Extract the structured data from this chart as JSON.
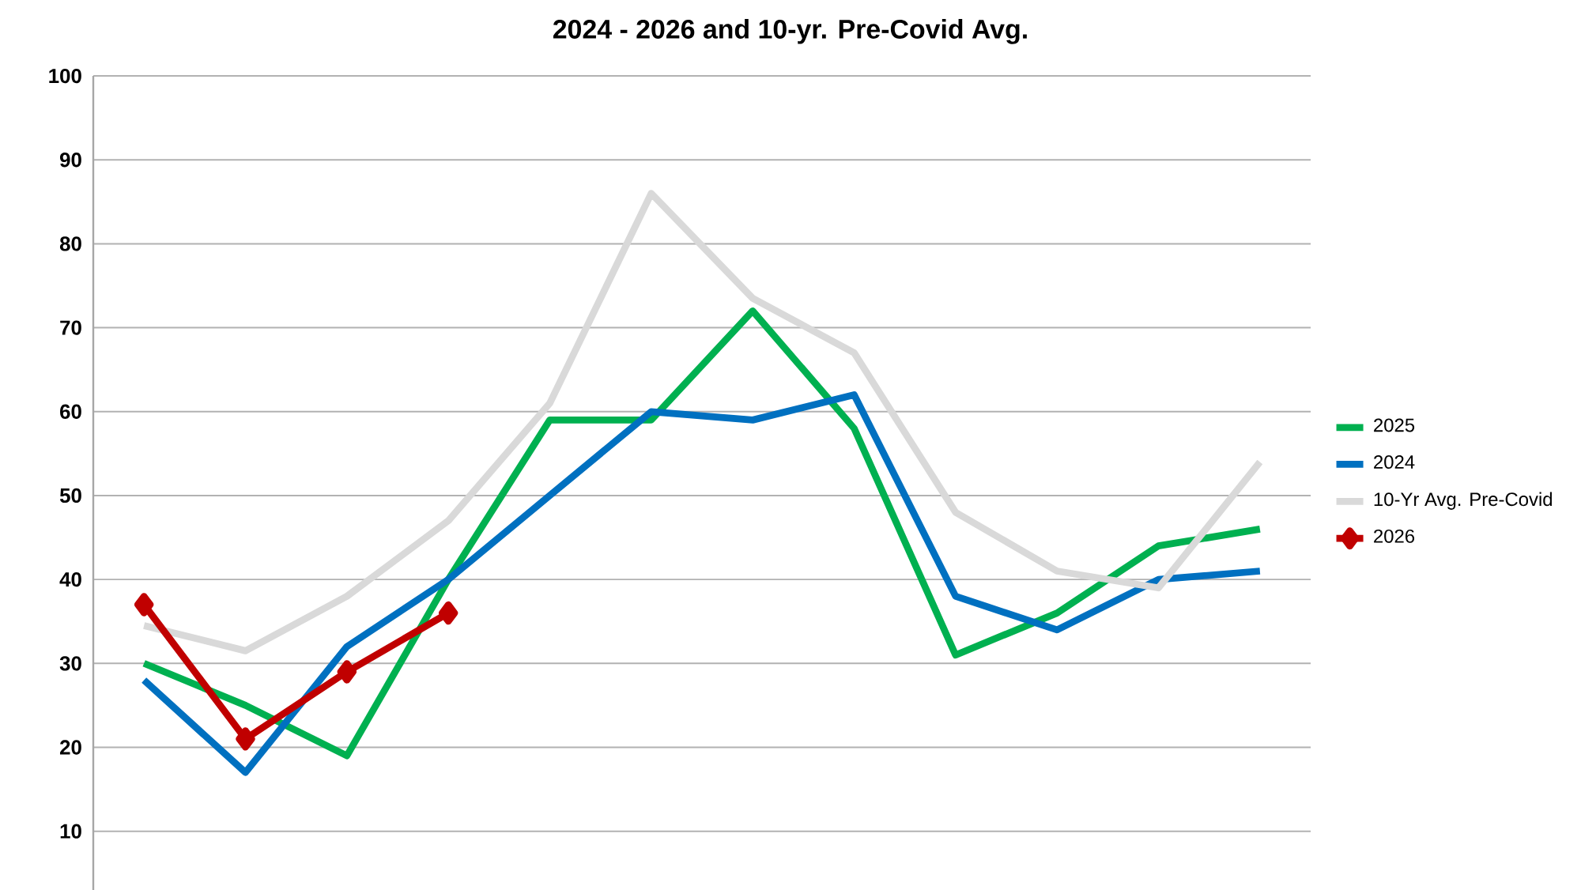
{
  "chart_data": {
    "type": "line",
    "title": "2024 - 2026 and 10-yr. Pre-Covid Avg.",
    "categories": [
      null,
      null,
      null,
      null,
      null,
      null,
      null,
      null,
      null,
      null,
      null,
      null
    ],
    "series": [
      {
        "name": "2025",
        "color": "#00b050",
        "values": [
          30,
          25,
          19,
          40,
          59,
          59,
          72,
          58,
          31,
          36,
          44,
          46
        ]
      },
      {
        "name": "2024",
        "color": "#0070c0",
        "values": [
          28,
          17,
          32,
          40,
          50,
          60,
          59,
          62,
          38,
          34,
          40,
          41
        ]
      },
      {
        "name": "10-Yr Avg. Pre-Covid",
        "color": "#d9d9d9",
        "values": [
          34.5,
          31.5,
          38,
          47,
          61,
          86,
          73.5,
          67,
          48,
          41,
          39,
          54
        ]
      },
      {
        "name": "2026",
        "color": "#c00000",
        "marker": "diamond",
        "values": [
          37,
          21,
          29,
          36,
          null,
          null,
          null,
          null,
          null,
          null,
          null,
          null
        ]
      }
    ],
    "ylim": [
      3,
      100
    ],
    "yticks": [
      10,
      20,
      30,
      40,
      50,
      60,
      70,
      80,
      90,
      100
    ],
    "grid": "y",
    "legend": "right",
    "marker": "none",
    "line_style": "solid"
  }
}
